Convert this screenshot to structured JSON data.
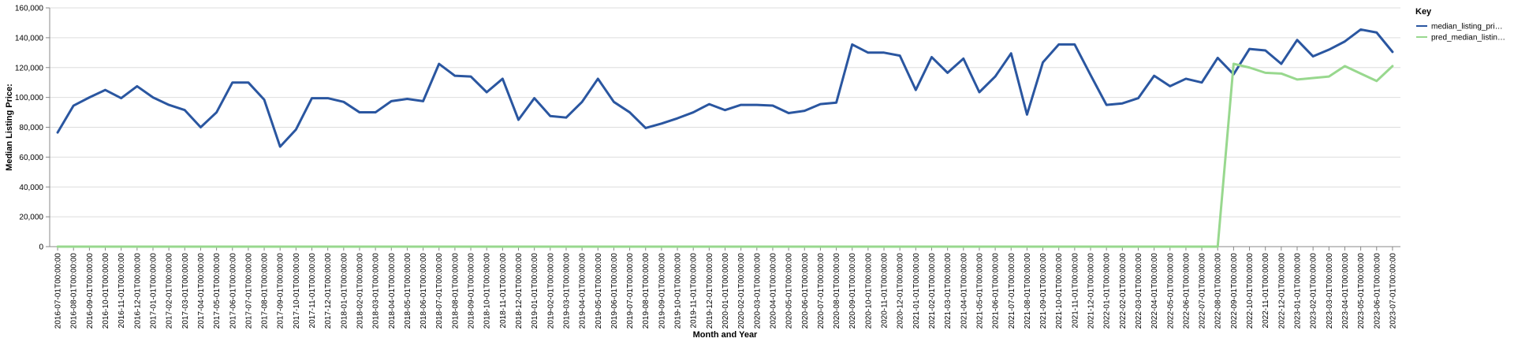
{
  "chart_data": {
    "type": "line",
    "xlabel": "Month and Year",
    "ylabel": "Median Listing Price:",
    "ylim": [
      0,
      160000
    ],
    "yticks": [
      0,
      20000,
      40000,
      60000,
      80000,
      100000,
      120000,
      140000,
      160000
    ],
    "ytick_labels": [
      "0",
      "20,000",
      "40,000",
      "60,000",
      "80,000",
      "100,000",
      "120,000",
      "140,000",
      "160,000"
    ],
    "grid": true,
    "legend": {
      "title": "Key",
      "placement": "top-right",
      "entries": [
        {
          "label": "median_listing_pri…",
          "color": "#2a56a0"
        },
        {
          "label": "pred_median_listin…",
          "color": "#98d88e"
        }
      ]
    },
    "x": [
      "2016-07-01T00:00:00",
      "2016-08-01T00:00:00",
      "2016-09-01T00:00:00",
      "2016-10-01T00:00:00",
      "2016-11-01T00:00:00",
      "2016-12-01T00:00:00",
      "2017-01-01T00:00:00",
      "2017-02-01T00:00:00",
      "2017-03-01T00:00:00",
      "2017-04-01T00:00:00",
      "2017-05-01T00:00:00",
      "2017-06-01T00:00:00",
      "2017-07-01T00:00:00",
      "2017-08-01T00:00:00",
      "2017-09-01T00:00:00",
      "2017-10-01T00:00:00",
      "2017-11-01T00:00:00",
      "2017-12-01T00:00:00",
      "2018-01-01T00:00:00",
      "2018-02-01T00:00:00",
      "2018-03-01T00:00:00",
      "2018-04-01T00:00:00",
      "2018-05-01T00:00:00",
      "2018-06-01T00:00:00",
      "2018-07-01T00:00:00",
      "2018-08-01T00:00:00",
      "2018-09-01T00:00:00",
      "2018-10-01T00:00:00",
      "2018-11-01T00:00:00",
      "2018-12-01T00:00:00",
      "2019-01-01T00:00:00",
      "2019-02-01T00:00:00",
      "2019-03-01T00:00:00",
      "2019-04-01T00:00:00",
      "2019-05-01T00:00:00",
      "2019-06-01T00:00:00",
      "2019-07-01T00:00:00",
      "2019-08-01T00:00:00",
      "2019-09-01T00:00:00",
      "2019-10-01T00:00:00",
      "2019-11-01T00:00:00",
      "2019-12-01T00:00:00",
      "2020-01-01T00:00:00",
      "2020-02-01T00:00:00",
      "2020-03-01T00:00:00",
      "2020-04-01T00:00:00",
      "2020-05-01T00:00:00",
      "2020-06-01T00:00:00",
      "2020-07-01T00:00:00",
      "2020-08-01T00:00:00",
      "2020-09-01T00:00:00",
      "2020-10-01T00:00:00",
      "2020-11-01T00:00:00",
      "2020-12-01T00:00:00",
      "2021-01-01T00:00:00",
      "2021-02-01T00:00:00",
      "2021-03-01T00:00:00",
      "2021-04-01T00:00:00",
      "2021-05-01T00:00:00",
      "2021-06-01T00:00:00",
      "2021-07-01T00:00:00",
      "2021-08-01T00:00:00",
      "2021-09-01T00:00:00",
      "2021-10-01T00:00:00",
      "2021-11-01T00:00:00",
      "2021-12-01T00:00:00",
      "2022-01-01T00:00:00",
      "2022-02-01T00:00:00",
      "2022-03-01T00:00:00",
      "2022-04-01T00:00:00",
      "2022-05-01T00:00:00",
      "2022-06-01T00:00:00",
      "2022-07-01T00:00:00",
      "2022-08-01T00:00:00",
      "2022-09-01T00:00:00",
      "2022-10-01T00:00:00",
      "2022-11-01T00:00:00",
      "2022-12-01T00:00:00",
      "2023-01-01T00:00:00",
      "2023-02-01T00:00:00",
      "2023-03-01T00:00:00",
      "2023-04-01T00:00:00",
      "2023-05-01T00:00:00",
      "2023-06-01T00:00:00",
      "2023-07-01T00:00:00"
    ],
    "series": [
      {
        "name": "median_listing_pri…",
        "color": "#2a56a0",
        "values": [
          76500,
          94500,
          100000,
          105000,
          99500,
          107500,
          100000,
          95000,
          91500,
          80000,
          90000,
          110000,
          110000,
          98500,
          67000,
          78500,
          99500,
          99500,
          97000,
          90000,
          90000,
          97500,
          99000,
          97500,
          122500,
          114500,
          114000,
          103500,
          112500,
          85000,
          99500,
          87500,
          86500,
          97000,
          112500,
          97000,
          90000,
          79500,
          82500,
          86000,
          90000,
          95500,
          91500,
          95000,
          95000,
          94500,
          89500,
          91000,
          95500,
          96500,
          135500,
          130000,
          130000,
          128000,
          105000,
          127000,
          116500,
          126000,
          103500,
          114000,
          129500,
          88500,
          123500,
          135500,
          135500,
          115000,
          95000,
          96000,
          99500,
          114500,
          107500,
          112500,
          110000,
          126500,
          115500,
          132500,
          131500,
          122500,
          138500,
          127500,
          132000,
          137500,
          145500,
          143500,
          130500
        ]
      },
      {
        "name": "pred_median_listin…",
        "color": "#98d88e",
        "values": [
          0,
          0,
          0,
          0,
          0,
          0,
          0,
          0,
          0,
          0,
          0,
          0,
          0,
          0,
          0,
          0,
          0,
          0,
          0,
          0,
          0,
          0,
          0,
          0,
          0,
          0,
          0,
          0,
          0,
          0,
          0,
          0,
          0,
          0,
          0,
          0,
          0,
          0,
          0,
          0,
          0,
          0,
          0,
          0,
          0,
          0,
          0,
          0,
          0,
          0,
          0,
          0,
          0,
          0,
          0,
          0,
          0,
          0,
          0,
          0,
          0,
          0,
          0,
          0,
          0,
          0,
          0,
          0,
          0,
          0,
          0,
          0,
          0,
          0,
          122500,
          120000,
          116500,
          116000,
          112000,
          113000,
          114000,
          121000,
          116000,
          111000,
          121000
        ]
      }
    ]
  }
}
